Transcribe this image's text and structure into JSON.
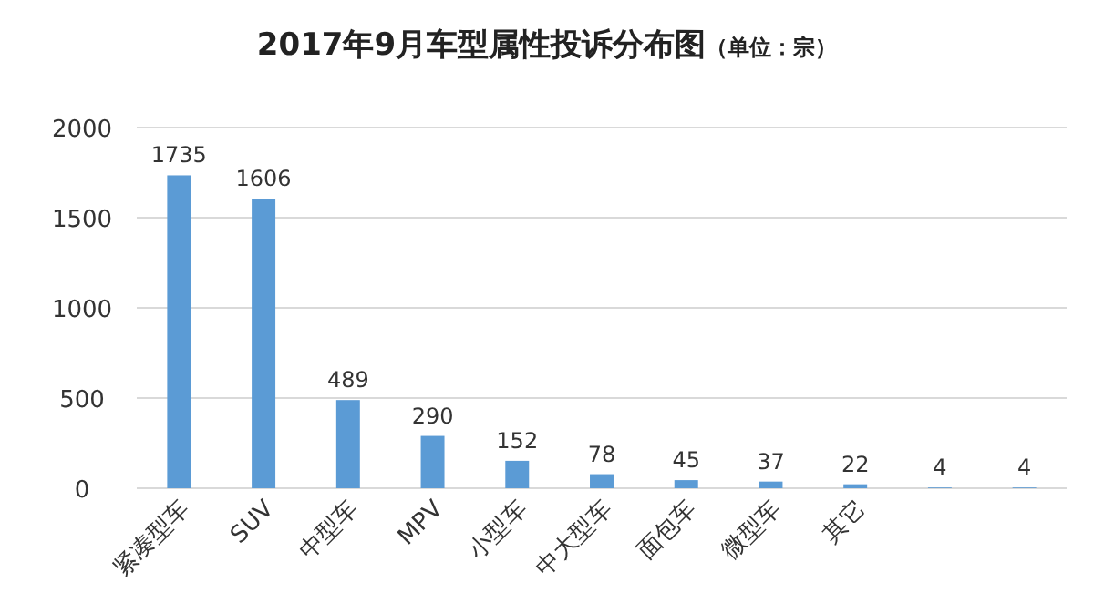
{
  "chart_data": {
    "type": "bar",
    "title": "2017年9月车型属性投诉分布图",
    "subtitle": "（单位：宗）",
    "categories": [
      "紧凑型车",
      "SUV",
      "中型车",
      "MPV",
      "小型车",
      "中大型车",
      "面包车",
      "微型车",
      "其它",
      null,
      null
    ],
    "values": [
      1735,
      1606,
      489,
      290,
      152,
      78,
      45,
      37,
      22,
      4,
      4
    ],
    "color": "#5b9bd5",
    "ylim": [
      0,
      2000
    ],
    "yticks": [
      0,
      500,
      1000,
      1500,
      2000
    ],
    "grid": "y",
    "data_labels": true
  }
}
